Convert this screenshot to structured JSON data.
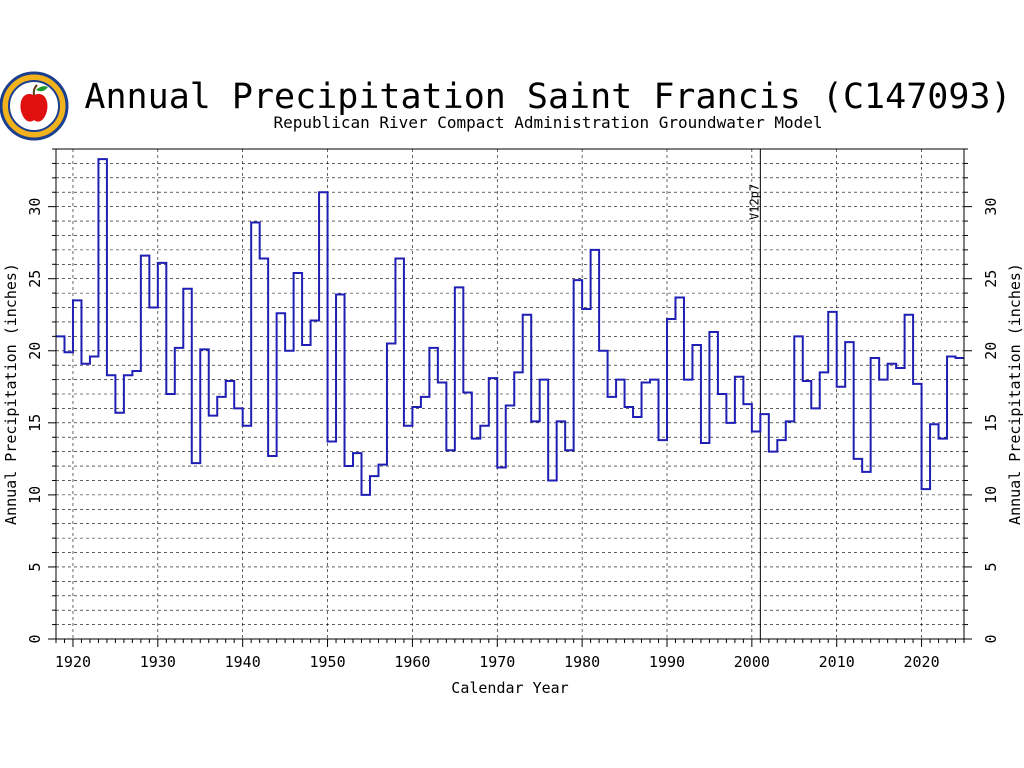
{
  "chart_data": {
    "type": "line",
    "step": true,
    "title": "Annual Precipitation Saint Francis (C147093)",
    "subtitle": "Republican River Compact Administration Groundwater Model",
    "xlabel": "Calendar Year",
    "ylabel": "Annual Precipitation (inches)",
    "xlim": [
      1918,
      2025
    ],
    "ylim": [
      0,
      34
    ],
    "x_ticks": [
      "1920",
      "1930",
      "1940",
      "1950",
      "1960",
      "1970",
      "1980",
      "1990",
      "2000",
      "2010",
      "2020"
    ],
    "y_ticks": [
      "0",
      "5",
      "10",
      "15",
      "20",
      "25",
      "30"
    ],
    "grid": true,
    "marker": {
      "label": "V12p7",
      "x": 2001
    },
    "line_color": "#1f1fb4",
    "series": [
      {
        "x": [
          1918,
          1919,
          1920,
          1921,
          1922,
          1923,
          1924,
          1925,
          1926,
          1927,
          1928,
          1929,
          1930,
          1931,
          1932,
          1933,
          1934,
          1935,
          1936,
          1937,
          1938,
          1939,
          1940,
          1941,
          1942,
          1943,
          1944,
          1945,
          1946,
          1947,
          1948,
          1949,
          1950,
          1951,
          1952,
          1953,
          1954,
          1955,
          1956,
          1957,
          1958,
          1959,
          1960,
          1961,
          1962,
          1963,
          1964,
          1965,
          1966,
          1967,
          1968,
          1969,
          1970,
          1971,
          1972,
          1973,
          1974,
          1975,
          1976,
          1977,
          1978,
          1979,
          1980,
          1981,
          1982,
          1983,
          1984,
          1985,
          1986,
          1987,
          1988,
          1989,
          1990,
          1991,
          1992,
          1993,
          1994,
          1995,
          1996,
          1997,
          1998,
          1999,
          2000,
          2001,
          2002,
          2003,
          2004,
          2005,
          2006,
          2007,
          2008,
          2009,
          2010,
          2011,
          2012,
          2013,
          2014,
          2015,
          2016,
          2017,
          2018,
          2019,
          2020,
          2021,
          2022,
          2023,
          2024
        ],
        "values": [
          21.0,
          19.9,
          23.5,
          19.1,
          19.6,
          33.3,
          18.3,
          15.7,
          18.3,
          18.6,
          26.6,
          23.0,
          26.1,
          17.0,
          20.2,
          24.3,
          12.2,
          20.1,
          15.5,
          16.8,
          17.9,
          16.0,
          14.8,
          28.9,
          26.4,
          12.7,
          22.6,
          20.0,
          25.4,
          20.4,
          22.1,
          31.0,
          13.7,
          23.9,
          12.0,
          12.9,
          10.0,
          11.3,
          12.1,
          20.5,
          26.4,
          14.8,
          16.1,
          16.8,
          20.2,
          17.8,
          13.1,
          24.4,
          17.1,
          13.9,
          14.8,
          18.1,
          11.9,
          16.2,
          18.5,
          22.5,
          15.1,
          18.0,
          11.0,
          15.1,
          13.1,
          24.9,
          22.9,
          27.0,
          20.0,
          16.8,
          18.0,
          16.1,
          15.4,
          17.8,
          18.0,
          13.8,
          22.2,
          23.7,
          18.0,
          20.4,
          13.6,
          21.3,
          17.0,
          15.0,
          18.2,
          16.3,
          14.4,
          15.6,
          13.0,
          13.8,
          15.1,
          21.0,
          17.9,
          16.0,
          18.5,
          22.7,
          17.5,
          20.6,
          12.5,
          11.6,
          19.5,
          18.0,
          19.1,
          18.8,
          22.5,
          17.7,
          10.4,
          14.9,
          13.9,
          19.6,
          19.5
        ]
      }
    ]
  }
}
